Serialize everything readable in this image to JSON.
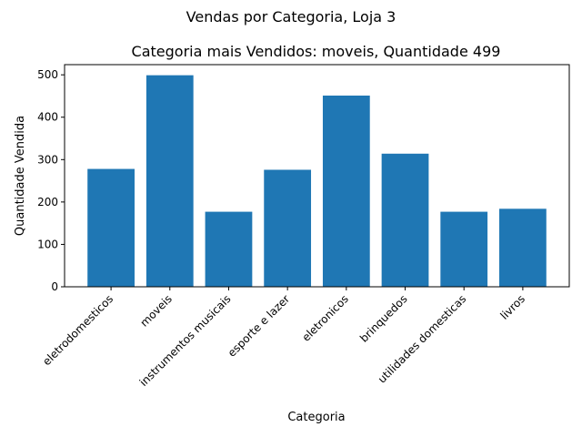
{
  "chart_data": {
    "type": "bar",
    "suptitle": "Vendas por Categoria, Loja 3",
    "title": "Categoria mais Vendidos: moveis, Quantidade 499",
    "xlabel": "Categoria",
    "ylabel": "Quantidade Vendida",
    "categories": [
      "eletrodomesticos",
      "moveis",
      "instrumentos musicais",
      "esporte e lazer",
      "eletronicos",
      "brinquedos",
      "utilidades domesticas",
      "livros"
    ],
    "values": [
      278,
      499,
      177,
      276,
      451,
      314,
      177,
      184
    ],
    "ylim": [
      0,
      524
    ],
    "yticks": [
      0,
      100,
      200,
      300,
      400,
      500
    ],
    "bar_color": "#1f77b4",
    "grid": false,
    "legend": "none"
  }
}
